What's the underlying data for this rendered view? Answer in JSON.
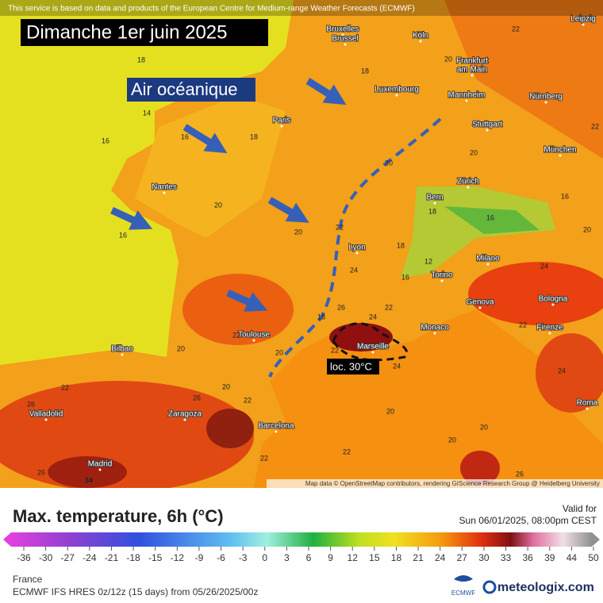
{
  "header": {
    "attribution": "This service is based on data and products of the European Centre for Medium-range Weather Forecasts (ECMWF)",
    "title": "Dimanche 1er juin 2025"
  },
  "annotations": {
    "air": "Air océanique",
    "local": "loc. 30°C"
  },
  "cities": [
    "Bruxelles",
    "Brussel",
    "Köln",
    "Leipzig",
    "Frankfurt",
    "am Main",
    "Luxembourg",
    "Mannheim",
    "Nürnberg",
    "Paris",
    "Stuttgart",
    "München",
    "Nantes",
    "Zürich",
    "Bern",
    "Lyon",
    "Milano",
    "Torino",
    "Genova",
    "Bologna",
    "Toulouse",
    "Monaco",
    "Firenze",
    "Marseille",
    "Bilbao",
    "Roma",
    "Valladolid",
    "Zaragoza",
    "Barcelona",
    "Madrid"
  ],
  "temperatures": [
    18,
    14,
    16,
    16,
    16,
    18,
    20,
    20,
    22,
    20,
    18,
    20,
    20,
    22,
    22,
    16,
    16,
    18,
    18,
    16,
    12,
    24,
    26,
    18,
    20,
    20,
    22,
    22,
    24,
    24,
    22,
    22,
    24,
    24,
    20,
    22,
    26,
    26,
    22,
    20,
    20,
    22,
    22,
    26,
    34,
    20,
    20,
    26
  ],
  "map_credit": "Map data © OpenStreetMap contributors, rendering GIScience Research Group @ Heidelberg University",
  "legend": {
    "title": "Max. temperature, 6h (°C)",
    "valid_label": "Valid for",
    "valid_time": "Sun 06/01/2025, 08:00pm CEST",
    "ticks": [
      -36,
      -30,
      -27,
      -24,
      -21,
      -18,
      -15,
      -12,
      -9,
      -6,
      -3,
      0,
      3,
      6,
      9,
      12,
      15,
      18,
      21,
      24,
      27,
      30,
      33,
      36,
      39,
      44,
      50
    ]
  },
  "footer": {
    "region": "France",
    "model": "ECMWF IFS HRES 0z/12z (15 days) from  05/26/2025/00z",
    "ecmwf": "ECMWF",
    "brand": "meteologix.com"
  }
}
